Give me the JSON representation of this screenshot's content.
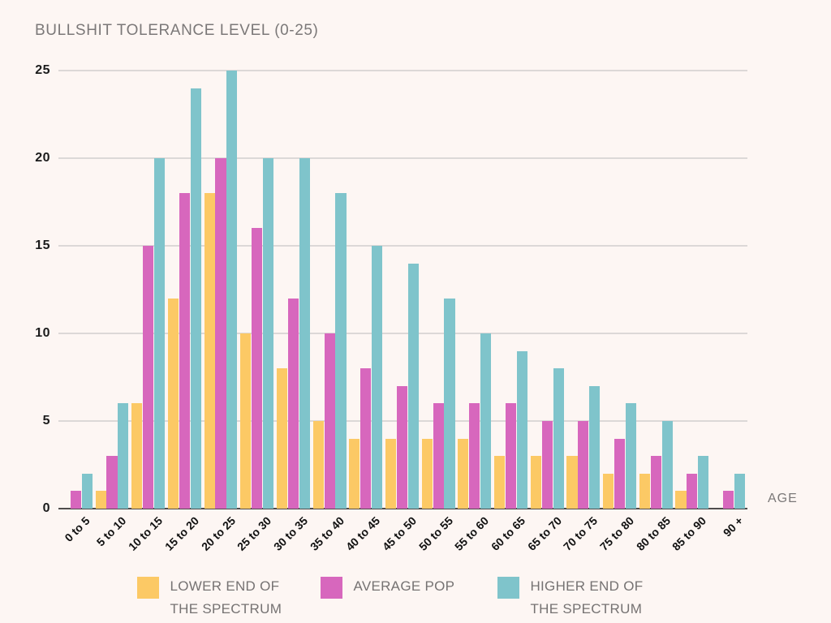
{
  "chart_data": {
    "type": "bar",
    "title": "BULLSHIT TOLERANCE LEVEL (0-25)",
    "xlabel": "AGE",
    "ylabel": "",
    "ylim": [
      0,
      25
    ],
    "yticks": [
      0,
      5,
      10,
      15,
      20,
      25
    ],
    "grid": true,
    "legend_position": "bottom",
    "categories": [
      "0 to 5",
      "5 to 10",
      "10 to 15",
      "15 to 20",
      "20 to 25",
      "25 to 30",
      "30 to 35",
      "35 to 40",
      "40 to 45",
      "45 to 50",
      "50 to 55",
      "55 to 60",
      "60 to 65",
      "65 to 70",
      "70 to 75",
      "75 to 80",
      "80 to 85",
      "85 to 90",
      "90 +"
    ],
    "series": [
      {
        "name": "LOWER END OF THE SPECTRUM",
        "color": "#FCC965",
        "values": [
          0,
          1,
          6,
          12,
          18,
          10,
          8,
          5,
          4,
          4,
          4,
          4,
          3,
          3,
          3,
          2,
          2,
          1,
          0
        ]
      },
      {
        "name": "AVERAGE POP",
        "color": "#D767BD",
        "values": [
          1,
          3,
          15,
          18,
          20,
          16,
          12,
          10,
          8,
          7,
          6,
          6,
          6,
          5,
          5,
          4,
          3,
          2,
          1
        ]
      },
      {
        "name": "HIGHER END OF THE SPECTRUM",
        "color": "#7FC4CB",
        "values": [
          2,
          6,
          20,
          24,
          25,
          20,
          20,
          18,
          15,
          14,
          12,
          10,
          9,
          8,
          7,
          6,
          5,
          3,
          2
        ]
      }
    ],
    "legend": [
      {
        "line1": "LOWER END OF",
        "line2": "THE SPECTRUM"
      },
      {
        "line1": "AVERAGE POP",
        "line2": ""
      },
      {
        "line1": "HIGHER END OF",
        "line2": "THE SPECTRUM"
      }
    ],
    "colors": {
      "background": "#FDF6F3",
      "gridline": "#DCD8D7",
      "axis_line": "#4F4C4C",
      "title_text": "#7b7878",
      "tick_text": "#1b1b1b",
      "legend_text": "#757272"
    }
  }
}
